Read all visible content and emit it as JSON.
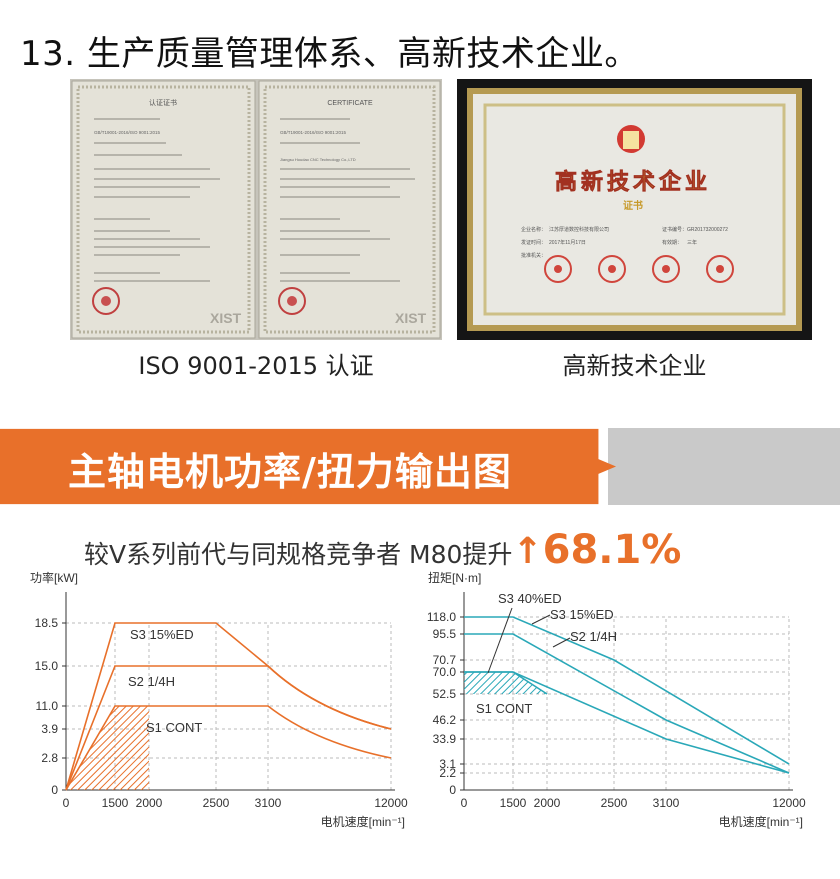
{
  "section13": {
    "title": "13. 生产质量管理体系、高新技术企业。"
  },
  "photos": {
    "iso": {
      "caption": "ISO 9001-2015 认证",
      "left_header": "认证证书",
      "right_header": "CERTIFICATE",
      "left_standard": "GB/T19001-2016/ISO 9001:2015",
      "right_standard": "GB/T19001-2016/ISO 9001:2015",
      "right_company": "Jiangsu Houdao CNC Technology Co.,LTD",
      "watermark": "XIST"
    },
    "hitech": {
      "caption": "高新技术企业",
      "cert_title": "高新技术企业",
      "cert_subtitle": "证书",
      "row1_label": "企业名称：",
      "row1_value": "江苏厚道数控科技有限公司",
      "row1b_label": "证书编号：",
      "row1b_value": "GR201732000272",
      "row2_label": "发证时间：",
      "row2_value": "2017年11月17日",
      "row2b_label": "有效期：",
      "row2b_value": "三年",
      "row3_label": "批准机关："
    }
  },
  "banner": {
    "title": "主轴电机功率/扭力输出图",
    "orange": "#e8702a",
    "gray": "#c9c9c9"
  },
  "comparison": {
    "text": "较V系列前代与同规格竞争者 M80提升",
    "arrow": "↑",
    "percent": "68.1%",
    "accent": "#e8702a"
  },
  "chart_data": [
    {
      "type": "line",
      "ylabel": "功率[kW]",
      "xlabel": "电机速度[min⁻¹]",
      "xticks": [
        0,
        1500,
        2000,
        2500,
        3100,
        12000
      ],
      "yticks": [
        0,
        2.8,
        3.9,
        11.0,
        15.0,
        18.5
      ],
      "ytick_labels": [
        "0",
        "2.8",
        "3.9",
        "11.0",
        "15.0",
        "18.5"
      ],
      "xlim": [
        0,
        12000
      ],
      "ylim": [
        0,
        21
      ],
      "color": "#e8702a",
      "series": [
        {
          "name": "S3  15%ED",
          "x": [
            0,
            1500,
            2500,
            3100,
            12000
          ],
          "y": [
            0,
            18.5,
            18.5,
            15.0,
            3.9
          ],
          "curve_after": 3100
        },
        {
          "name": "S2  1/4H",
          "x": [
            0,
            1500,
            3100,
            12000
          ],
          "y": [
            0,
            15.0,
            15.0,
            3.9
          ],
          "curve_after": 3100
        },
        {
          "name": "S1  CONT",
          "x": [
            0,
            1500,
            3100,
            12000
          ],
          "y": [
            0,
            11.0,
            11.0,
            2.8
          ],
          "curve_after": 3100
        }
      ],
      "hatched_region": {
        "x": [
          0,
          1500,
          2000
        ],
        "y_top": [
          0,
          11.0,
          11.0
        ]
      }
    },
    {
      "type": "line",
      "ylabel": "扭矩[N·m]",
      "xlabel": "电机速度[min⁻¹]",
      "xticks": [
        0,
        1500,
        2000,
        2500,
        3100,
        12000
      ],
      "yticks": [
        0,
        2.2,
        3.1,
        33.9,
        46.2,
        52.5,
        70.0,
        70.7,
        95.5,
        118.0
      ],
      "ytick_labels": [
        "0",
        "2.2",
        "3.1",
        "33.9",
        "46.2",
        "52.5",
        "70.0",
        "70.7",
        "95.5",
        "118.0"
      ],
      "xlim": [
        0,
        12000
      ],
      "ylim": [
        0,
        130
      ],
      "color": "#2aa8b8",
      "series": [
        {
          "name": "S3  40%ED",
          "x": [
            0,
            1500,
            2000
          ],
          "y": [
            70.0,
            70.0,
            52.5
          ]
        },
        {
          "name": "S3  15%ED",
          "x": [
            0,
            1500,
            2500,
            12000
          ],
          "y": [
            118.0,
            118.0,
            70.7,
            3.1
          ]
        },
        {
          "name": "S2  1/4H",
          "x": [
            0,
            1500,
            3100,
            12000
          ],
          "y": [
            95.5,
            95.5,
            46.2,
            2.2
          ]
        },
        {
          "name": "S1  CONT",
          "x": [
            0,
            1500,
            3100,
            12000
          ],
          "y": [
            70.0,
            70.0,
            33.9,
            2.2
          ]
        }
      ],
      "hatched_region": {
        "x": [
          0,
          1500,
          2000
        ],
        "y_top": [
          70.0,
          70.0,
          52.5
        ],
        "y_bottom": 52.5
      }
    }
  ]
}
